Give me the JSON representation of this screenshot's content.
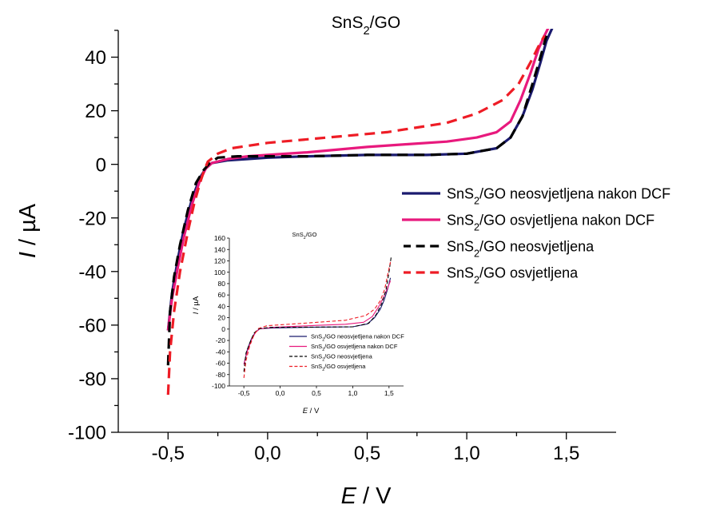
{
  "chart_data": [
    {
      "id": "main",
      "type": "line",
      "title": "SnS2/GO",
      "xlabel": "E / V",
      "ylabel": "I / µA",
      "xlim": [
        -0.75,
        1.75
      ],
      "ylim": [
        -100,
        50
      ],
      "x_ticks": [
        -0.5,
        0.0,
        0.5,
        1.0,
        1.5
      ],
      "x_tick_labels": [
        "-0,5",
        "0,0",
        "0,5",
        "1,0",
        "1,5"
      ],
      "y_ticks": [
        -100,
        -80,
        -60,
        -40,
        -20,
        0,
        20,
        40
      ],
      "y_tick_labels": [
        "-100",
        "-80",
        "-60",
        "-40",
        "-20",
        "0",
        "20",
        "40"
      ],
      "grid": false,
      "legend_position": "right",
      "series": [
        {
          "name": "SnS2/GO neosvjetljena nakon DCF",
          "color": "#1a1a6e",
          "dash": "solid",
          "x": [
            -0.5,
            -0.48,
            -0.45,
            -0.42,
            -0.38,
            -0.34,
            -0.31,
            -0.28,
            -0.2,
            -0.1,
            0.0,
            0.2,
            0.5,
            0.8,
            1.0,
            1.15,
            1.22,
            1.28,
            1.33,
            1.37,
            1.4,
            1.43
          ],
          "y": [
            -62,
            -48,
            -35,
            -24,
            -13,
            -5,
            -1.5,
            0.5,
            1.5,
            2,
            2.5,
            3,
            3.5,
            3.5,
            4,
            6,
            10,
            18,
            28,
            38,
            46,
            51
          ]
        },
        {
          "name": "SnS2/GO osvjetljena nakon DCF",
          "color": "#e8197d",
          "dash": "solid",
          "x": [
            -0.5,
            -0.48,
            -0.45,
            -0.42,
            -0.38,
            -0.34,
            -0.31,
            -0.28,
            -0.2,
            -0.1,
            0.0,
            0.2,
            0.5,
            0.7,
            0.9,
            1.05,
            1.15,
            1.22,
            1.27,
            1.32,
            1.36,
            1.39,
            1.41
          ],
          "y": [
            -62,
            -50,
            -38,
            -27,
            -15,
            -6,
            -1.5,
            0.5,
            2,
            3,
            3.5,
            4.5,
            6.5,
            7.5,
            8.5,
            10,
            12,
            16,
            24,
            34,
            43,
            48,
            51
          ]
        },
        {
          "name": "SnS2/GO neosvjetljena",
          "color": "#000000",
          "dash": "dashed",
          "x": [
            -0.5,
            -0.49,
            -0.47,
            -0.44,
            -0.4,
            -0.36,
            -0.32,
            -0.29,
            -0.25,
            -0.15,
            0.0,
            0.2,
            0.5,
            0.8,
            1.0,
            1.15,
            1.22,
            1.28,
            1.33,
            1.37,
            1.4
          ],
          "y": [
            -75,
            -55,
            -42,
            -30,
            -17,
            -7,
            -2,
            0.5,
            2.5,
            3,
            3,
            3,
            3.5,
            3.5,
            4,
            6,
            10,
            18,
            30,
            40,
            48
          ]
        },
        {
          "name": "SnS2/GO osvjetljena",
          "color": "#ee1c25",
          "dash": "dashed",
          "x": [
            -0.5,
            -0.49,
            -0.47,
            -0.44,
            -0.4,
            -0.37,
            -0.34,
            -0.32,
            -0.3,
            -0.25,
            -0.18,
            0.0,
            0.3,
            0.6,
            0.9,
            1.05,
            1.18,
            1.26,
            1.32,
            1.36,
            1.39
          ],
          "y": [
            -86,
            -70,
            -55,
            -40,
            -25,
            -15,
            -7,
            -2.5,
            1,
            4,
            6,
            8,
            10,
            12,
            15.5,
            19,
            24,
            30,
            38,
            44,
            48
          ]
        }
      ]
    },
    {
      "id": "inset",
      "type": "line",
      "title": "SnS2/GO",
      "xlabel": "E / V",
      "ylabel": "I / µA",
      "xlim": [
        -0.7,
        1.7
      ],
      "ylim": [
        -100,
        160
      ],
      "x_ticks": [
        -0.5,
        0.0,
        0.5,
        1.0,
        1.5
      ],
      "x_tick_labels": [
        "-0,5",
        "0,0",
        "0,5",
        "1,0",
        "1,5"
      ],
      "y_ticks": [
        -100,
        -80,
        -60,
        -40,
        -20,
        0,
        20,
        40,
        60,
        80,
        100,
        120,
        140,
        160
      ],
      "y_tick_labels": [
        "-100",
        "-80",
        "-60",
        "-40",
        "-20",
        "0",
        "20",
        "40",
        "60",
        "80",
        "100",
        "120",
        "140",
        "160"
      ],
      "grid": false,
      "legend_position": "center",
      "series": [
        {
          "name": "SnS2/GO neosvjetljena nakon DCF",
          "color": "#1a1a6e",
          "dash": "solid",
          "x": [
            -0.5,
            -0.45,
            -0.4,
            -0.34,
            -0.28,
            -0.1,
            0.5,
            1.0,
            1.2,
            1.3,
            1.38,
            1.43,
            1.48,
            1.52
          ],
          "y": [
            -62,
            -35,
            -18,
            -5,
            0.5,
            2,
            3.5,
            4,
            9,
            20,
            35,
            50,
            70,
            90
          ]
        },
        {
          "name": "SnS2/GO osvjetljena nakon DCF",
          "color": "#e8197d",
          "dash": "solid",
          "x": [
            -0.5,
            -0.45,
            -0.4,
            -0.34,
            -0.28,
            -0.1,
            0.5,
            0.9,
            1.15,
            1.27,
            1.36,
            1.42,
            1.48,
            1.52
          ],
          "y": [
            -62,
            -38,
            -20,
            -6,
            0.5,
            3,
            6.5,
            8.5,
            12,
            22,
            40,
            55,
            72,
            85
          ]
        },
        {
          "name": "SnS2/GO neosvjetljena",
          "color": "#000000",
          "dash": "dashed",
          "x": [
            -0.5,
            -0.47,
            -0.42,
            -0.36,
            -0.29,
            -0.15,
            0.5,
            1.0,
            1.22,
            1.32,
            1.4,
            1.46,
            1.5,
            1.53
          ],
          "y": [
            -75,
            -42,
            -25,
            -7,
            0.5,
            3,
            3.5,
            4,
            10,
            25,
            45,
            70,
            100,
            128
          ]
        },
        {
          "name": "SnS2/GO osvjetljena",
          "color": "#ee1c25",
          "dash": "dashed",
          "x": [
            -0.5,
            -0.47,
            -0.42,
            -0.36,
            -0.3,
            -0.18,
            0.3,
            0.9,
            1.18,
            1.3,
            1.38,
            1.44,
            1.48,
            1.52
          ],
          "y": [
            -86,
            -55,
            -30,
            -10,
            1,
            6,
            10,
            15.5,
            24,
            35,
            50,
            70,
            95,
            118
          ]
        }
      ]
    }
  ]
}
